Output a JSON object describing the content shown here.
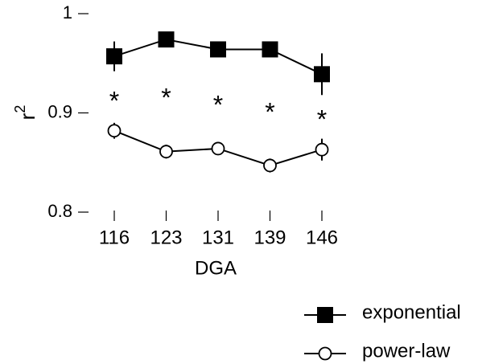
{
  "chart_data": {
    "type": "line",
    "xlabel": "DGA",
    "ylabel": "r",
    "ylabel_superscript": "2",
    "categories": [
      "116",
      "123",
      "131",
      "139",
      "146"
    ],
    "series": [
      {
        "name": "exponential",
        "color": "#000000",
        "marker": "square",
        "values": [
          0.957,
          0.974,
          0.964,
          0.964,
          0.939
        ],
        "errors": [
          0.015,
          0.003,
          0.002,
          0.003,
          0.021
        ]
      },
      {
        "name": "power-law",
        "color": "#000000",
        "marker": "circle",
        "values": [
          0.882,
          0.861,
          0.864,
          0.847,
          0.863
        ],
        "errors": [
          0.008,
          0.007,
          0.005,
          0.007,
          0.011
        ]
      }
    ],
    "annotations": [
      "*",
      "*",
      "*",
      "*",
      "*"
    ],
    "ylim": [
      0.8,
      1
    ],
    "yticks": [
      {
        "value": 0.8,
        "label": "0.8"
      },
      {
        "value": 0.9,
        "label": "0.9"
      },
      1
    ],
    "grid": false
  }
}
